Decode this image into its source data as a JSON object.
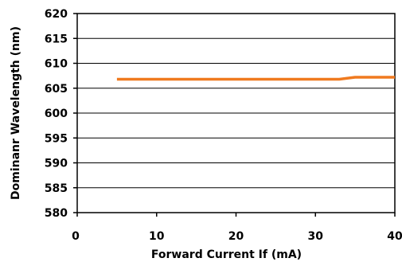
{
  "chart_data": {
    "type": "line",
    "title": "",
    "xlabel": "Forward Current If (mA)",
    "ylabel": "Dominanr Wavelength (nm)",
    "xlim": [
      0,
      40
    ],
    "ylim": [
      580,
      620
    ],
    "xticks": [
      0,
      10,
      20,
      30,
      40
    ],
    "yticks": [
      580,
      585,
      590,
      595,
      600,
      605,
      610,
      615,
      620
    ],
    "grid": "horizontal",
    "legend": "none",
    "series": [
      {
        "color": "#f07a1f",
        "x": [
          5,
          10,
          15,
          20,
          25,
          30,
          33,
          35,
          40
        ],
        "y": [
          606.8,
          606.8,
          606.8,
          606.8,
          606.8,
          606.8,
          606.8,
          607.2,
          607.2
        ]
      }
    ]
  }
}
